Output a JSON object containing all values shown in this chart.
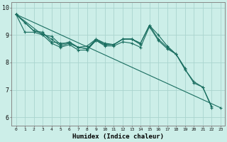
{
  "xlabel": "Humidex (Indice chaleur)",
  "ylabel": "",
  "background_color": "#cceee8",
  "grid_color": "#aad4ce",
  "line_color": "#1a6e60",
  "xlim": [
    -0.5,
    23.5
  ],
  "ylim": [
    5.7,
    10.2
  ],
  "yticks": [
    6,
    7,
    8,
    9,
    10
  ],
  "xticks": [
    0,
    1,
    2,
    3,
    4,
    5,
    6,
    7,
    8,
    9,
    10,
    11,
    12,
    13,
    14,
    15,
    16,
    17,
    18,
    19,
    20,
    21,
    22,
    23
  ],
  "series": [
    [
      9.75,
      9.45,
      9.15,
      9.1,
      8.75,
      8.7,
      8.7,
      8.55,
      8.5,
      8.85,
      8.7,
      8.65,
      8.85,
      8.85,
      8.7,
      9.35,
      9.0,
      8.6,
      8.3,
      7.8,
      null,
      null,
      null,
      null
    ],
    [
      9.75,
      null,
      9.15,
      9.05,
      8.85,
      8.6,
      8.7,
      8.55,
      8.6,
      8.85,
      8.65,
      8.65,
      8.85,
      8.85,
      8.7,
      9.35,
      8.85,
      8.55,
      8.3,
      7.75,
      7.3,
      7.1,
      6.4,
      null
    ],
    [
      9.75,
      null,
      null,
      9.0,
      8.95,
      8.65,
      8.75,
      8.55,
      8.5,
      8.8,
      8.65,
      8.65,
      8.85,
      8.85,
      8.65,
      null,
      null,
      null,
      null,
      null,
      null,
      null,
      null,
      null
    ],
    [
      9.75,
      9.1,
      9.1,
      9.0,
      8.7,
      8.55,
      8.65,
      8.45,
      8.45,
      8.8,
      8.6,
      8.6,
      8.75,
      8.7,
      8.55,
      9.3,
      8.8,
      8.5,
      8.3,
      7.75,
      7.25,
      7.1,
      6.35,
      null
    ],
    [
      9.75,
      null,
      null,
      null,
      null,
      null,
      null,
      null,
      null,
      null,
      null,
      null,
      null,
      null,
      null,
      null,
      null,
      null,
      null,
      null,
      null,
      null,
      null,
      6.35
    ]
  ]
}
